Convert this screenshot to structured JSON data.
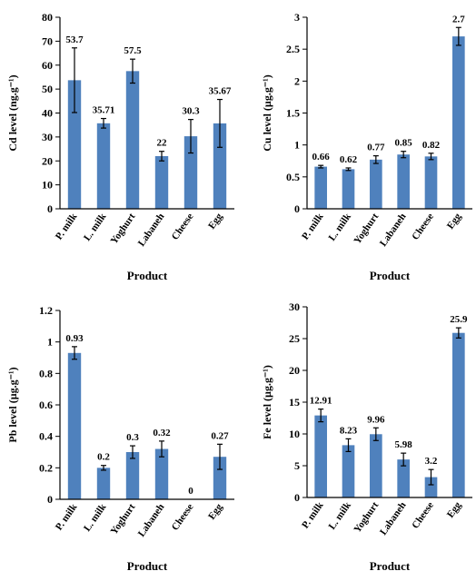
{
  "colors": {
    "bar": "#4f81bd",
    "error_bar": "#000000",
    "axis": "#000000"
  },
  "chart_data": [
    {
      "type": "bar",
      "categories": [
        "P. milk",
        "L. milk",
        "Yoghurt",
        "Labaneh",
        "Cheese",
        "Egg"
      ],
      "values": [
        53.7,
        35.71,
        57.5,
        22,
        30.3,
        35.67
      ],
      "data_labels": [
        "53.7",
        "35.71",
        "57.5",
        "22",
        "30.3",
        "35.67"
      ],
      "error": [
        13.5,
        2,
        5,
        2,
        7,
        10
      ],
      "ylabel": "Cd level (ng.g⁻¹)",
      "xlabel": "Product",
      "ylim": [
        0,
        80
      ],
      "yticks": [
        "0",
        "10",
        "20",
        "30",
        "40",
        "50",
        "60",
        "70",
        "80"
      ]
    },
    {
      "type": "bar",
      "categories": [
        "P. milk",
        "L. milk",
        "Yoghurt",
        "Labaneh",
        "Cheese",
        "Egg"
      ],
      "values": [
        0.66,
        0.62,
        0.77,
        0.85,
        0.82,
        2.7
      ],
      "data_labels": [
        "0.66",
        "0.62",
        "0.77",
        "0.85",
        "0.82",
        "2.7"
      ],
      "error": [
        0.02,
        0.02,
        0.06,
        0.05,
        0.05,
        0.14
      ],
      "ylabel": "Cu level (µg.g⁻¹)",
      "xlabel": "Product",
      "ylim": [
        0,
        3
      ],
      "yticks": [
        "0",
        "0.5",
        "1",
        "1.5",
        "2",
        "2.5",
        "3"
      ]
    },
    {
      "type": "bar",
      "categories": [
        "P. milk",
        "L. milk",
        "Yoghurt",
        "Labaneh",
        "Cheese",
        "Egg"
      ],
      "values": [
        0.93,
        0.2,
        0.3,
        0.32,
        0,
        0.27
      ],
      "data_labels": [
        "0.93",
        "0.2",
        "0.3",
        "0.32",
        "0",
        "0.27"
      ],
      "error": [
        0.04,
        0.015,
        0.04,
        0.05,
        0,
        0.08
      ],
      "ylabel": "Pb level (µg.g⁻¹)",
      "xlabel": "Product",
      "ylim": [
        0,
        1.2
      ],
      "yticks": [
        "0",
        "0.2",
        "0.4",
        "0.6",
        "0.8",
        "1",
        "1.2"
      ]
    },
    {
      "type": "bar",
      "categories": [
        "P. milk",
        "L. milk",
        "Yoghurt",
        "Labaneh",
        "Cheese",
        "Egg"
      ],
      "values": [
        12.91,
        8.23,
        9.96,
        5.98,
        3.2,
        25.9
      ],
      "data_labels": [
        "12.91",
        "8.23",
        "9.96",
        "5.98",
        "3.2",
        "25.9"
      ],
      "error": [
        1,
        1,
        1,
        1,
        1.2,
        0.8
      ],
      "ylabel": "Fe level (µg.g⁻¹)",
      "xlabel": "Product",
      "ylim": [
        0,
        30
      ],
      "yticks": [
        "0",
        "5",
        "10",
        "15",
        "20",
        "25",
        "30"
      ]
    }
  ]
}
